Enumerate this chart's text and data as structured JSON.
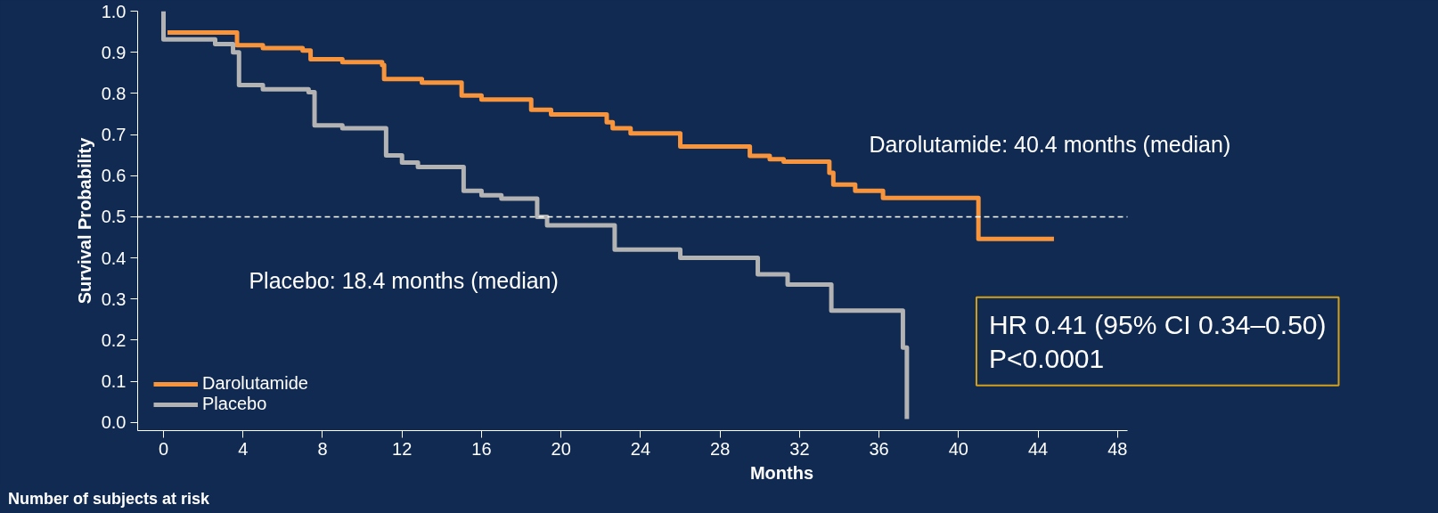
{
  "chart_data": {
    "type": "step",
    "xlabel": "Months",
    "ylabel": "Survival Probability",
    "xlim": [
      -1.3,
      48.5
    ],
    "ylim": [
      -0.02,
      1.0
    ],
    "xticks": [
      0,
      4,
      8,
      12,
      16,
      20,
      24,
      28,
      32,
      36,
      40,
      44,
      48
    ],
    "yticks": [
      {
        "value": 0,
        "label": "0.0"
      },
      0.1,
      0.2,
      0.3,
      0.4,
      0.5,
      0.6,
      0.7,
      0.8,
      0.9,
      {
        "value": 1,
        "label": "1.0"
      }
    ],
    "grid": false,
    "legend": "bottom left",
    "line_style": "solid",
    "series": [
      {
        "name": "Darolutamide",
        "color": "#f7943c",
        "x": [
          0.2,
          3.7,
          5,
          7.0,
          7.4,
          9,
          11.0,
          11.1,
          13,
          15.0,
          16,
          18.5,
          19.5,
          22.3,
          22.6,
          23.5,
          26.0,
          29.5,
          30.5,
          31.2,
          33.5,
          33.7,
          34.8,
          36.2,
          41.0,
          44.8
        ],
        "values": [
          0.948,
          0.917,
          0.91,
          0.904,
          0.883,
          0.876,
          0.869,
          0.835,
          0.826,
          0.795,
          0.785,
          0.76,
          0.749,
          0.73,
          0.715,
          0.703,
          0.671,
          0.648,
          0.64,
          0.634,
          0.607,
          0.578,
          0.563,
          0.546,
          0.446,
          0.446
        ]
      },
      {
        "name": "Placebo",
        "color": "#b3b3b3",
        "x": [
          0,
          0,
          2.6,
          3.5,
          3.8,
          5,
          7.3,
          7.6,
          9,
          11.2,
          12,
          12.8,
          15.1,
          16,
          17,
          18.8,
          19.3,
          22.7,
          26.0,
          29.9,
          31.4,
          33.6,
          37.2,
          37.4
        ],
        "values": [
          1.0,
          0.931,
          0.92,
          0.9,
          0.82,
          0.81,
          0.803,
          0.722,
          0.715,
          0.649,
          0.632,
          0.621,
          0.563,
          0.552,
          0.544,
          0.5,
          0.479,
          0.42,
          0.4,
          0.36,
          0.335,
          0.272,
          0.182,
          0.008
        ]
      }
    ],
    "ref_lines": [
      {
        "axis": "y",
        "value": 0.5,
        "color": "#ffffff",
        "line_style": "dashed"
      }
    ],
    "annotations": [
      "Darolutamide: 40.4 months (median)",
      "Placebo: 18.4 months (median)",
      "HR 0.41 (95% CI 0.34–0.50)\nP<0.0001",
      "Number of subjects at risk"
    ]
  }
}
